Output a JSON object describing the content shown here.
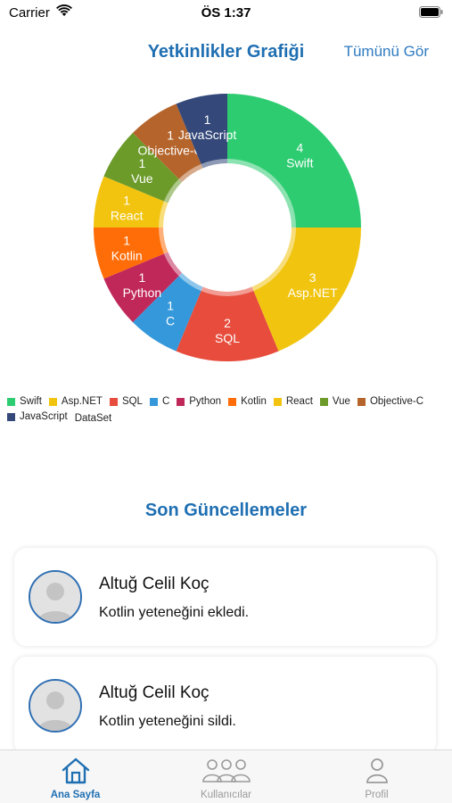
{
  "status_bar": {
    "carrier": "Carrier",
    "time": "ÖS 1:37"
  },
  "header": {
    "title": "Yetkinlikler Grafiği",
    "see_all": "Tümünü Gör"
  },
  "chart_data": {
    "type": "pie",
    "categories": [
      "Swift",
      "Asp.NET",
      "SQL",
      "C",
      "Python",
      "Kotlin",
      "React",
      "Vue",
      "Objective-C",
      "JavaScript"
    ],
    "values": [
      4,
      3,
      2,
      1,
      1,
      1,
      1,
      1,
      1,
      1
    ],
    "colors": [
      "#2ecc71",
      "#f1c40f",
      "#e74c3c",
      "#3498db",
      "#c0285a",
      "#ff6d08",
      "#f2c40f",
      "#6c9b2a",
      "#b5652c",
      "#34497a"
    ],
    "legend": [
      "Swift",
      "Asp.NET",
      "SQL",
      "C",
      "Python",
      "Kotlin",
      "React",
      "Vue",
      "Objective-C",
      "JavaScript"
    ],
    "dataset_label": "DataSet",
    "legend_position": "bottom-left"
  },
  "updates": {
    "title": "Son Güncellemeler",
    "items": [
      {
        "name": "Altuğ Celil Koç",
        "action": "Kotlin yeteneğini ekledi."
      },
      {
        "name": "Altuğ Celil Koç",
        "action": "Kotlin yeteneğini sildi."
      }
    ]
  },
  "tab_bar": {
    "active_color": "#1f6fb2",
    "inactive_color": "#9a9a9a",
    "tabs": [
      {
        "label": "Ana Sayfa",
        "icon": "home-icon"
      },
      {
        "label": "Kullanıcılar",
        "icon": "users-icon"
      },
      {
        "label": "Profil",
        "icon": "profile-icon"
      }
    ]
  }
}
